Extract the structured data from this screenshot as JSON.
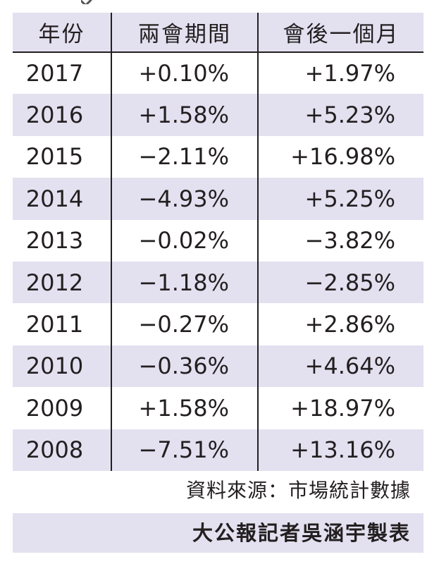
{
  "table": {
    "headers": [
      "年份",
      "兩會期間",
      "會後一個月"
    ],
    "rows": [
      {
        "year": "2017",
        "during": "+0.10%",
        "after": "+1.97%"
      },
      {
        "year": "2016",
        "during": "+1.58%",
        "after": "+5.23%"
      },
      {
        "year": "2015",
        "during": "−2.11%",
        "after": "+16.98%"
      },
      {
        "year": "2014",
        "during": "−4.93%",
        "after": "+5.25%"
      },
      {
        "year": "2013",
        "during": "−0.02%",
        "after": "−3.82%"
      },
      {
        "year": "2012",
        "during": "−1.18%",
        "after": "−2.85%"
      },
      {
        "year": "2011",
        "during": "−0.27%",
        "after": "+2.86%"
      },
      {
        "year": "2010",
        "during": "−0.36%",
        "after": "+4.64%"
      },
      {
        "year": "2009",
        "during": "+1.58%",
        "after": "+18.97%"
      },
      {
        "year": "2008",
        "during": "−7.51%",
        "after": "+13.16%"
      }
    ]
  },
  "footer": {
    "source": "資料來源：市場統計數據",
    "credit": "大公報記者吳涵宇製表"
  },
  "colors": {
    "band": "#e3e0f0",
    "text": "#231f20",
    "rule": "#231f20"
  }
}
